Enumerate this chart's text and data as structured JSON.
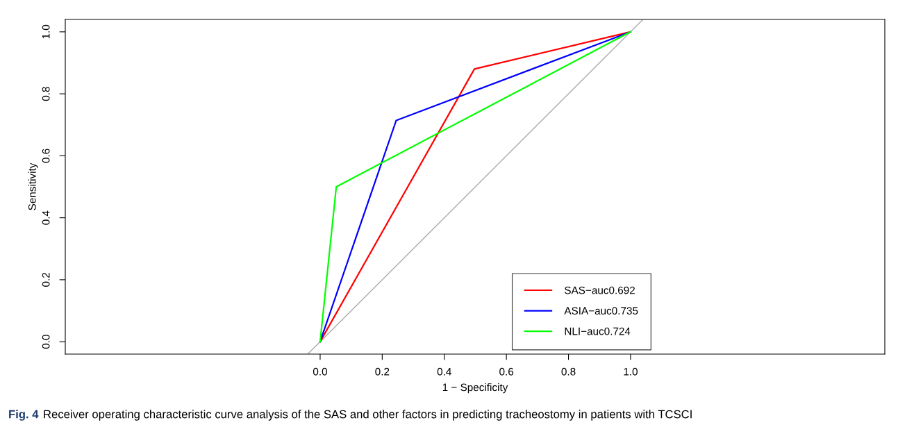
{
  "chart_data": {
    "type": "line",
    "xlabel": "1 − Specificity",
    "ylabel": "Sensitivity",
    "xlim": [
      -0.821,
      1.819
    ],
    "ylim": [
      -0.04,
      1.04
    ],
    "xticks": [
      {
        "value": 0,
        "label": "0.0"
      },
      {
        "value": 0.2,
        "label": "0.2"
      },
      {
        "value": 0.4,
        "label": "0.4"
      },
      {
        "value": 0.6,
        "label": "0.6"
      },
      {
        "value": 0.8,
        "label": "0.8"
      },
      {
        "value": 1,
        "label": "1.0"
      }
    ],
    "yticks": [
      {
        "value": 0,
        "label": "0.0"
      },
      {
        "value": 0.2,
        "label": "0.2"
      },
      {
        "value": 0.4,
        "label": "0.4"
      },
      {
        "value": 0.6,
        "label": "0.6"
      },
      {
        "value": 0.8,
        "label": "0.8"
      },
      {
        "value": 1,
        "label": "1.0"
      }
    ],
    "series": [
      {
        "name": "SAS−auc0.692",
        "color": "#ff0000",
        "x": [
          0,
          0.497,
          1
        ],
        "values": [
          0,
          0.88,
          1
        ]
      },
      {
        "name": "ASIA−auc0.735",
        "color": "#0000ff",
        "x": [
          0,
          0.245,
          1
        ],
        "values": [
          0,
          0.714,
          1
        ]
      },
      {
        "name": "NLI−auc0.724",
        "color": "#00ff00",
        "x": [
          0,
          0.052,
          1
        ],
        "values": [
          0,
          0.5,
          1
        ]
      },
      {
        "color": "#aaaaaa",
        "x": [
          -0.04,
          1.04
        ],
        "values": [
          -0.04,
          1.04
        ]
      }
    ],
    "legend": "bottom",
    "grid": false,
    "marker": "none",
    "line_style": "solid",
    "annotations": [
      "Fig. 4",
      "Receiver operating characteristic curve analysis of the SAS and other factors in predicting tracheostomy in patients with TCSCI"
    ]
  }
}
